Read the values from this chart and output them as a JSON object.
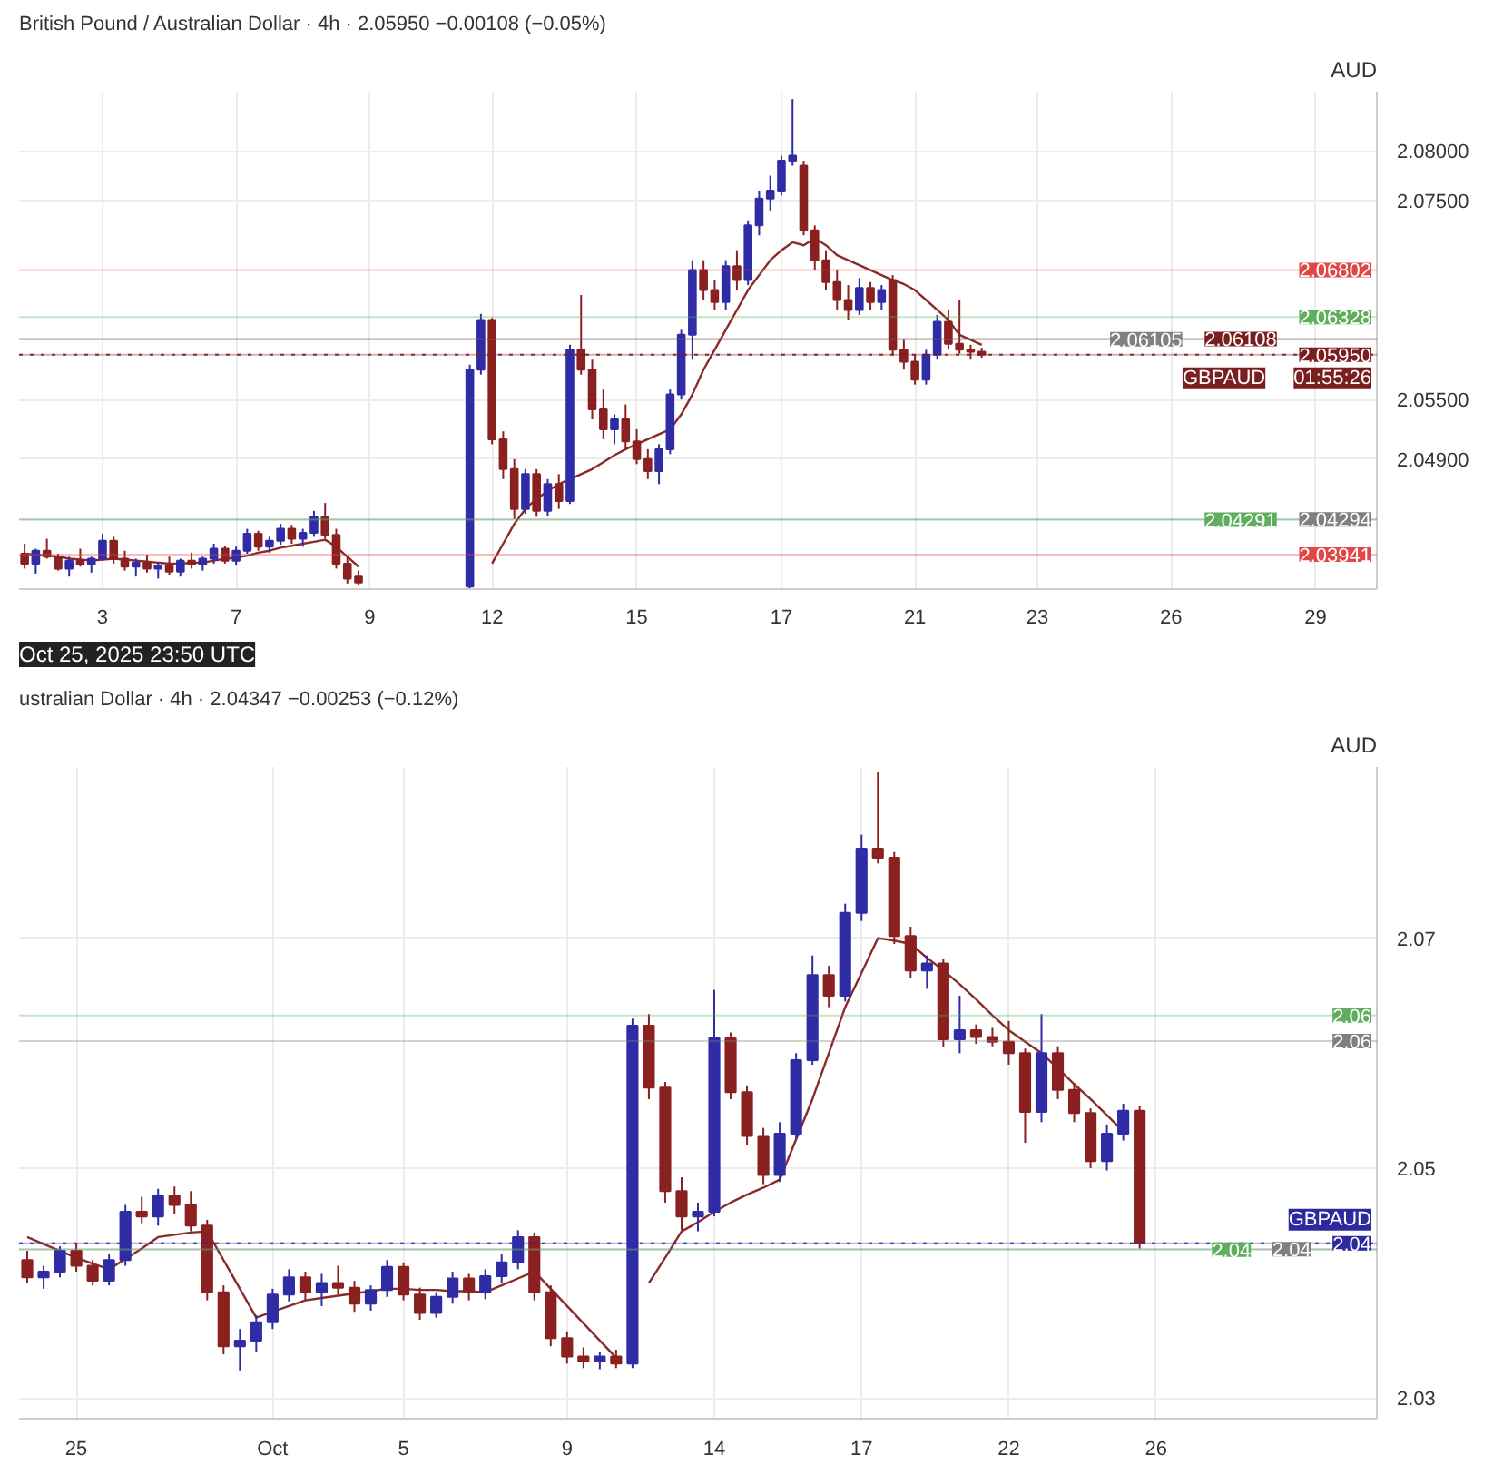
{
  "chart_data": [
    {
      "type": "candlestick",
      "title": "British Pound / Australian Dollar · 4h · 2.05950 −0.00108 (−0.05%)",
      "ylabel": "AUD",
      "categories": [
        null,
        null,
        null,
        null,
        null,
        null,
        null,
        "3",
        null,
        null,
        null,
        null,
        null,
        null,
        null,
        null,
        null,
        null,
        null,
        "7",
        null,
        null,
        null,
        null,
        null,
        null,
        null,
        null,
        null,
        null,
        null,
        "9",
        null,
        null,
        null,
        null,
        null,
        null,
        null,
        null,
        null,
        null,
        "12",
        null,
        null,
        null,
        null,
        null,
        null,
        null,
        null,
        null,
        null,
        null,
        null,
        "15",
        null,
        null,
        null,
        null,
        null,
        null,
        null,
        null,
        null,
        null,
        null,
        null,
        "17",
        null,
        null,
        null,
        null,
        null,
        null,
        null,
        null,
        null,
        null,
        null,
        "21",
        null,
        null,
        null,
        null,
        null,
        null,
        null,
        null,
        null,
        null,
        "23",
        null,
        null,
        null,
        null,
        null,
        null,
        null,
        null,
        null,
        null,
        null,
        "26",
        null,
        null,
        null,
        null,
        null,
        null,
        null,
        null,
        null,
        null,
        null,
        null,
        "29",
        null,
        null,
        null,
        null,
        null
      ],
      "ohlc": [
        [
          2.0395,
          2.0405,
          2.038,
          2.0385
        ],
        [
          2.0385,
          2.04,
          2.0375,
          2.0398
        ],
        [
          2.0398,
          2.041,
          2.039,
          2.0392
        ],
        [
          2.0392,
          2.0395,
          2.0378,
          2.038
        ],
        [
          2.038,
          2.0392,
          2.0372,
          2.0388
        ],
        [
          2.0388,
          2.04,
          2.0382,
          2.0384
        ],
        [
          2.0384,
          2.0392,
          2.0376,
          2.039
        ],
        [
          2.039,
          2.0415,
          2.0388,
          2.0408
        ],
        [
          2.0408,
          2.0412,
          2.0385,
          2.039
        ],
        [
          2.039,
          2.0398,
          2.0378,
          2.0382
        ],
        [
          2.0382,
          2.039,
          2.0372,
          2.0386
        ],
        [
          2.0386,
          2.0394,
          2.0376,
          2.038
        ],
        [
          2.038,
          2.0386,
          2.037,
          2.0383
        ],
        [
          2.0383,
          2.0392,
          2.0374,
          2.0377
        ],
        [
          2.0377,
          2.039,
          2.0372,
          2.0388
        ],
        [
          2.0388,
          2.0396,
          2.038,
          2.0384
        ],
        [
          2.0384,
          2.0392,
          2.0378,
          2.039
        ],
        [
          2.039,
          2.0405,
          2.0385,
          2.04
        ],
        [
          2.04,
          2.0403,
          2.0385,
          2.0388
        ],
        [
          2.0388,
          2.0402,
          2.0383,
          2.0398
        ],
        [
          2.0398,
          2.042,
          2.0395,
          2.0415
        ],
        [
          2.0415,
          2.0418,
          2.0398,
          2.0402
        ],
        [
          2.0402,
          2.0412,
          2.0396,
          2.0408
        ],
        [
          2.0408,
          2.0425,
          2.0404,
          2.042
        ],
        [
          2.042,
          2.0424,
          2.0405,
          2.041
        ],
        [
          2.041,
          2.042,
          2.0402,
          2.0416
        ],
        [
          2.0416,
          2.0438,
          2.0412,
          2.0432
        ],
        [
          2.0432,
          2.0446,
          2.041,
          2.0414
        ],
        [
          2.0414,
          2.042,
          2.038,
          2.0385
        ],
        [
          2.0385,
          2.0392,
          2.0365,
          2.037
        ],
        [
          2.0372,
          2.0378,
          2.0364,
          2.0366
        ],
        null,
        null,
        null,
        null,
        null,
        null,
        null,
        null,
        null,
        [
          2.0362,
          2.0585,
          2.036,
          2.058
        ],
        [
          2.058,
          2.0636,
          2.0575,
          2.063
        ],
        [
          2.063,
          2.0632,
          2.0505,
          2.051
        ],
        [
          2.051,
          2.0518,
          2.047,
          2.048
        ],
        [
          2.048,
          2.049,
          2.043,
          2.044
        ],
        [
          2.044,
          2.048,
          2.0435,
          2.0475
        ],
        [
          2.0475,
          2.048,
          2.0432,
          2.0438
        ],
        [
          2.0438,
          2.047,
          2.0433,
          2.0465
        ],
        [
          2.0465,
          2.0475,
          2.044,
          2.0448
        ],
        [
          2.0448,
          2.0605,
          2.0445,
          2.06
        ],
        [
          2.06,
          2.0655,
          2.0575,
          2.058
        ],
        [
          2.058,
          2.059,
          2.053,
          2.054
        ],
        [
          2.054,
          2.056,
          2.051,
          2.052
        ],
        [
          2.052,
          2.0535,
          2.0505,
          2.053
        ],
        [
          2.053,
          2.0545,
          2.05,
          2.0508
        ],
        [
          2.0508,
          2.052,
          2.0485,
          2.049
        ],
        [
          2.049,
          2.05,
          2.047,
          2.0478
        ],
        [
          2.0478,
          2.0505,
          2.0465,
          2.05
        ],
        [
          2.05,
          2.056,
          2.0495,
          2.0555
        ],
        [
          2.0555,
          2.062,
          2.055,
          2.0615
        ],
        [
          2.0615,
          2.069,
          2.059,
          2.068
        ],
        [
          2.068,
          2.069,
          2.065,
          2.066
        ],
        [
          2.066,
          2.067,
          2.064,
          2.0648
        ],
        [
          2.0648,
          2.069,
          2.064,
          2.0684
        ],
        [
          2.0684,
          2.07,
          2.066,
          2.067
        ],
        [
          2.067,
          2.073,
          2.0665,
          2.0725
        ],
        [
          2.0725,
          2.076,
          2.0715,
          2.0752
        ],
        [
          2.0752,
          2.0775,
          2.074,
          2.076
        ],
        [
          2.076,
          2.0795,
          2.0755,
          2.079
        ],
        [
          2.079,
          2.0852,
          2.0785,
          2.0795
        ],
        [
          2.0785,
          2.079,
          2.0715,
          2.072
        ],
        [
          2.072,
          2.0725,
          2.068,
          2.069
        ],
        [
          2.069,
          2.07,
          2.066,
          2.0668
        ],
        [
          2.0668,
          2.068,
          2.064,
          2.065
        ],
        [
          2.065,
          2.0665,
          2.063,
          2.064
        ],
        [
          2.064,
          2.0672,
          2.0635,
          2.0662
        ],
        [
          2.0662,
          2.0668,
          2.064,
          2.0648
        ],
        [
          2.0648,
          2.0665,
          2.064,
          2.066
        ],
        [
          2.067,
          2.0675,
          2.0595,
          2.06
        ],
        [
          2.06,
          2.061,
          2.058,
          2.0588
        ],
        [
          2.0588,
          2.0595,
          2.0565,
          2.057
        ],
        [
          2.057,
          2.06,
          2.0565,
          2.0595
        ],
        [
          2.0595,
          2.0635,
          2.059,
          2.0628
        ],
        [
          2.0628,
          2.064,
          2.06,
          2.0606
        ],
        [
          2.0606,
          2.065,
          2.0596,
          2.06
        ],
        [
          2.06,
          2.0605,
          2.059,
          2.0598
        ],
        [
          2.0598,
          2.0602,
          2.0592,
          2.0595
        ],
        null,
        null,
        null,
        null,
        null,
        null,
        null,
        null,
        null,
        null,
        null,
        null,
        null,
        null,
        null,
        null,
        null,
        null,
        null,
        null,
        null,
        null,
        null,
        null,
        null,
        null,
        null,
        null,
        null,
        null,
        null,
        null,
        null,
        null,
        null
      ],
      "series": [
        {
          "type": "line",
          "color": "#8b2a2a",
          "values": [
            2.0395,
            2.0394,
            2.0393,
            2.0392,
            2.039,
            2.0389,
            2.0388,
            2.0389,
            2.039,
            2.0389,
            2.0388,
            2.0387,
            2.0386,
            2.0385,
            2.0385,
            2.0386,
            2.0386,
            2.0388,
            2.039,
            2.0391,
            2.0393,
            2.0396,
            2.0398,
            2.0401,
            2.0403,
            2.0405,
            2.0407,
            2.0409,
            2.0402,
            2.0392,
            2.0382,
            null,
            null,
            null,
            null,
            null,
            null,
            null,
            null,
            null,
            null,
            null,
            2.0385,
            2.0405,
            2.0425,
            2.044,
            2.045,
            2.0458,
            2.0465,
            2.047,
            2.0475,
            2.048,
            2.0487,
            2.0494,
            2.05,
            2.0505,
            2.051,
            2.0515,
            2.052,
            2.0535,
            2.0555,
            2.058,
            2.06,
            2.062,
            2.064,
            2.066,
            2.0675,
            2.069,
            2.07,
            2.0708,
            2.0705,
            2.0712,
            2.0705,
            2.0695,
            2.069,
            2.0685,
            2.068,
            2.0675,
            2.067,
            2.0666,
            2.066,
            2.065,
            2.064,
            2.063,
            2.0615,
            2.061,
            2.0605,
            null,
            null,
            null,
            null,
            null,
            null,
            null,
            null,
            null,
            null,
            null,
            null,
            null,
            null,
            null,
            null,
            null,
            null,
            null,
            null,
            null,
            null,
            null,
            null,
            null,
            null,
            null,
            null,
            null,
            null,
            null,
            null,
            null,
            null,
            null
          ]
        }
      ],
      "ylim": [
        2.03594,
        2.08594
      ],
      "yticks": [
        {
          "value": 2.049,
          "label": "2.04900"
        },
        {
          "value": 2.055,
          "label": "2.05500"
        },
        {
          "value": 2.075,
          "label": "2.07500"
        },
        {
          "value": 2.08,
          "label": "2.08000"
        }
      ],
      "grid": true,
      "ref_lines": [
        {
          "axis": "y",
          "value": 2.06802,
          "label": "2.06802",
          "color": "#e04848"
        },
        {
          "axis": "y",
          "value": 2.06328,
          "label": "2.06328",
          "color": "#5fae5f"
        },
        {
          "axis": "y",
          "value": 2.06108,
          "label": "2.06108",
          "color": "#7a1f1f"
        },
        {
          "axis": "y",
          "value": 2.06105,
          "label": "2.06105",
          "color": "#808080"
        },
        {
          "axis": "y",
          "value": 2.0595,
          "label": "GBPAUD",
          "color": "#7a1f1f",
          "line_style": "dotted"
        },
        {
          "axis": "y",
          "value": 2.0595,
          "label": "2.05950",
          "color": "#7a1f1f"
        },
        {
          "axis": "y",
          "value": 2.04294,
          "label": "2.04294",
          "color": "#808080"
        },
        {
          "axis": "y",
          "value": 2.04291,
          "label": "2.04291",
          "color": "#5fae5f"
        },
        {
          "axis": "y",
          "value": 2.03941,
          "label": "2.03941",
          "color": "#e04848"
        }
      ],
      "annotations": [
        {
          "text": "01:55:26",
          "y": 2.0595
        },
        "Oct 25, 2025 23:50 UTC"
      ]
    },
    {
      "type": "candlestick",
      "title": "ustralian Dollar · 4h · 2.04347 −0.00253 (−0.12%)",
      "ylabel": "AUD",
      "categories": [
        null,
        null,
        null,
        "25",
        null,
        null,
        null,
        null,
        null,
        null,
        null,
        null,
        null,
        null,
        null,
        "Oct",
        null,
        null,
        null,
        null,
        null,
        null,
        null,
        "5",
        null,
        null,
        null,
        null,
        null,
        null,
        null,
        null,
        null,
        "9",
        null,
        null,
        null,
        null,
        null,
        null,
        null,
        null,
        "14",
        null,
        null,
        null,
        null,
        null,
        null,
        null,
        null,
        "17",
        null,
        null,
        null,
        null,
        null,
        null,
        null,
        null,
        "22",
        null,
        null,
        null,
        null,
        null,
        null,
        null,
        null,
        "26",
        null,
        null,
        null,
        null,
        null,
        null,
        null,
        null,
        null,
        null,
        null,
        null,
        null
      ],
      "ohlc": [
        [
          2.042,
          2.0428,
          2.04,
          2.0405
        ],
        [
          2.0405,
          2.0415,
          2.0395,
          2.041
        ],
        [
          2.041,
          2.0432,
          2.0405,
          2.0428
        ],
        [
          2.0428,
          2.0435,
          2.041,
          2.0415
        ],
        [
          2.0415,
          2.042,
          2.0398,
          2.0402
        ],
        [
          2.0402,
          2.0425,
          2.0398,
          2.042
        ],
        [
          2.042,
          2.0468,
          2.0415,
          2.0462
        ],
        [
          2.0462,
          2.0475,
          2.0452,
          2.0458
        ],
        [
          2.0458,
          2.0482,
          2.045,
          2.0476
        ],
        [
          2.0476,
          2.0484,
          2.046,
          2.0468
        ],
        [
          2.0468,
          2.048,
          2.0445,
          2.045
        ],
        [
          2.045,
          2.0455,
          2.0385,
          2.0392
        ],
        [
          2.0392,
          2.0398,
          2.0338,
          2.0345
        ],
        [
          2.0345,
          2.036,
          2.0324,
          2.035
        ],
        [
          2.035,
          2.0372,
          2.034,
          2.0366
        ],
        [
          2.0366,
          2.0395,
          2.036,
          2.039
        ],
        [
          2.039,
          2.0412,
          2.0384,
          2.0405
        ],
        [
          2.0405,
          2.041,
          2.0385,
          2.0392
        ],
        [
          2.0392,
          2.0408,
          2.038,
          2.04
        ],
        [
          2.04,
          2.0415,
          2.039,
          2.0396
        ],
        [
          2.0396,
          2.0402,
          2.0375,
          2.0382
        ],
        [
          2.0382,
          2.0398,
          2.0376,
          2.0394
        ],
        [
          2.0394,
          2.042,
          2.0388,
          2.0414
        ],
        [
          2.0414,
          2.0418,
          2.0385,
          2.039
        ],
        [
          2.039,
          2.0396,
          2.0368,
          2.0374
        ],
        [
          2.0374,
          2.0392,
          2.037,
          2.0388
        ],
        [
          2.0388,
          2.041,
          2.0382,
          2.0404
        ],
        [
          2.0404,
          2.0408,
          2.0385,
          2.0392
        ],
        [
          2.0392,
          2.0412,
          2.0386,
          2.0406
        ],
        [
          2.0406,
          2.0425,
          2.04,
          2.0418
        ],
        [
          2.0418,
          2.0446,
          2.0412,
          2.044
        ],
        [
          2.044,
          2.0444,
          2.0385,
          2.0392
        ],
        [
          2.0392,
          2.0398,
          2.0345,
          2.0352
        ],
        [
          2.0352,
          2.0358,
          2.033,
          2.0336
        ],
        [
          2.0336,
          2.0344,
          2.0326,
          2.0332
        ],
        [
          2.0332,
          2.034,
          2.0325,
          2.0336
        ],
        [
          2.0336,
          2.0342,
          2.0326,
          2.033
        ],
        [
          2.033,
          2.063,
          2.0326,
          2.0624
        ],
        [
          2.0624,
          2.0634,
          2.056,
          2.057
        ],
        [
          2.057,
          2.0575,
          2.047,
          2.048
        ],
        [
          2.048,
          2.0492,
          2.0446,
          2.0458
        ],
        [
          2.0458,
          2.047,
          2.0445,
          2.0462
        ],
        [
          2.0462,
          2.0655,
          2.0458,
          2.0613
        ],
        [
          2.0613,
          2.0618,
          2.056,
          2.0566
        ],
        [
          2.0566,
          2.0572,
          2.052,
          2.0528
        ],
        [
          2.0528,
          2.0535,
          2.0486,
          2.0494
        ],
        [
          2.0494,
          2.054,
          2.0488,
          2.053
        ],
        [
          2.053,
          2.06,
          2.0525,
          2.0594
        ],
        [
          2.0594,
          2.0685,
          2.059,
          2.0668
        ],
        [
          2.0668,
          2.0676,
          2.064,
          2.065
        ],
        [
          2.065,
          2.073,
          2.0645,
          2.0722
        ],
        [
          2.0722,
          2.079,
          2.0715,
          2.0778
        ],
        [
          2.0778,
          2.0845,
          2.0765,
          2.077
        ],
        [
          2.077,
          2.0775,
          2.0695,
          2.0702
        ],
        [
          2.0702,
          2.071,
          2.0665,
          2.0672
        ],
        [
          2.0672,
          2.0685,
          2.0656,
          2.0678
        ],
        [
          2.0678,
          2.0682,
          2.0605,
          2.0612
        ],
        [
          2.0612,
          2.065,
          2.06,
          2.062
        ],
        [
          2.062,
          2.0625,
          2.0608,
          2.0614
        ],
        [
          2.0614,
          2.0622,
          2.0606,
          2.061
        ],
        [
          2.061,
          2.0628,
          2.059,
          2.06
        ],
        [
          2.06,
          2.0604,
          2.0522,
          2.0549
        ],
        [
          2.0549,
          2.0634,
          2.054,
          2.06
        ],
        [
          2.06,
          2.0606,
          2.056,
          2.0568
        ],
        [
          2.0568,
          2.0574,
          2.054,
          2.0548
        ],
        [
          2.0548,
          2.0552,
          2.05,
          2.0506
        ],
        [
          2.0506,
          2.0538,
          2.0498,
          2.053
        ],
        [
          2.053,
          2.0556,
          2.0524,
          2.055
        ],
        [
          2.055,
          2.0554,
          2.043,
          2.04347
        ],
        null,
        null,
        null,
        null,
        null,
        null,
        null,
        null,
        null,
        null,
        null,
        null,
        null,
        null
      ],
      "series": [
        {
          "type": "line",
          "color": "#8b2a2a",
          "values": [
            2.044,
            2.0434,
            2.0428,
            2.0422,
            2.0417,
            2.0412,
            2.0421,
            2.043,
            2.044,
            2.0442,
            2.0444,
            2.0445,
            2.042,
            2.0395,
            2.037,
            2.0375,
            2.038,
            2.0385,
            2.0387,
            2.0389,
            2.0391,
            2.0393,
            2.0395,
            2.0395,
            2.0394,
            2.0394,
            2.0393,
            2.0393,
            2.0392,
            2.0398,
            2.0404,
            2.041,
            2.0395,
            2.038,
            2.0365,
            2.035,
            2.0335,
            null,
            2.04,
            2.0422,
            2.0445,
            2.0453,
            2.0462,
            2.047,
            2.0477,
            2.0483,
            2.049,
            2.0525,
            2.056,
            2.06,
            2.064,
            2.067,
            2.07,
            2.0698,
            2.0695,
            2.0683,
            2.0672,
            2.066,
            2.0647,
            2.0633,
            2.062,
            2.061,
            2.06,
            2.0587,
            2.0573,
            2.056,
            2.0546,
            2.0532,
            null,
            null,
            null,
            null,
            null,
            null,
            null,
            null,
            null,
            null,
            null,
            null,
            null,
            null,
            null
          ]
        }
      ],
      "ylim": [
        2.0282,
        2.0849
      ],
      "yticks": [
        2.03,
        2.05,
        2.07
      ],
      "grid": true,
      "ref_lines": [
        {
          "axis": "y",
          "value": 2.06328,
          "label": "2.06",
          "color": "#5fae5f"
        },
        {
          "axis": "y",
          "value": 2.06105,
          "label": "2.06",
          "color": "#808080"
        },
        {
          "axis": "y",
          "value": 2.04347,
          "label": "GBPAUD",
          "color": "#2d2a9e",
          "line_style": "dotted"
        },
        {
          "axis": "y",
          "value": 2.04347,
          "label": "2.04",
          "color": "#2d2a9e"
        },
        {
          "axis": "y",
          "value": 2.04294,
          "label": "2.04",
          "color": "#808080"
        },
        {
          "axis": "y",
          "value": 2.04291,
          "label": "2.04",
          "color": "#5fae5f"
        }
      ]
    }
  ]
}
